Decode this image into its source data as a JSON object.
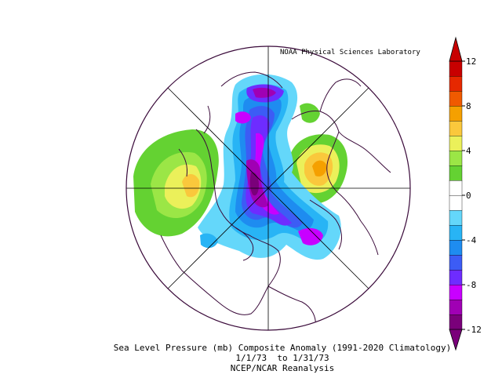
{
  "credit": "NOAA Physical Sciences Laboratory",
  "caption": {
    "line1": "Sea Level Pressure (mb) Composite Anomaly (1991-2020 Climatology)",
    "line2": "1/1/73  to 1/31/73",
    "line3": "NCEP/NCAR Reanalysis"
  },
  "colorbar": {
    "ticks": [
      "12",
      "8",
      "4",
      "0",
      "-4",
      "-8",
      "-12"
    ],
    "colors": [
      "#7a007a",
      "#a000b4",
      "#c800ff",
      "#6e2cff",
      "#3c5cf5",
      "#1e8cf0",
      "#28b4f5",
      "#64d7fa",
      "#ffffff",
      "#ffffff",
      "#64d232",
      "#9be646",
      "#ebf05a",
      "#fac83c",
      "#f5a000",
      "#f05a00",
      "#e62800",
      "#c80000"
    ]
  },
  "map_colors": {
    "coast": "#3a0a3a",
    "grid": "#000000"
  }
}
